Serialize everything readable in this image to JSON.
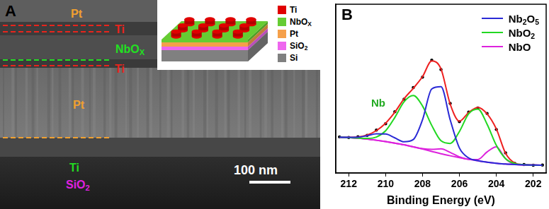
{
  "panel_a": {
    "label": "A",
    "layer_labels": [
      {
        "text": "Pt",
        "color": "#f0a030"
      },
      {
        "text": "Ti",
        "color": "#e8241c"
      },
      {
        "text": "NbOX",
        "color": "#22e022"
      },
      {
        "text": "Ti",
        "color": "#e8241c"
      },
      {
        "text": "Pt",
        "color": "#f0a030"
      },
      {
        "text": "Ti",
        "color": "#22dd22"
      },
      {
        "text": "SiO2",
        "color": "#e020e0"
      }
    ],
    "scale_bar": "100 nm",
    "inset_legend": [
      {
        "label": "Ti",
        "color": "#e00000"
      },
      {
        "label": "NbOX",
        "color": "#66cc33"
      },
      {
        "label": "Pt",
        "color": "#f5a04a"
      },
      {
        "label": "SiO2",
        "color": "#ee66ee"
      },
      {
        "label": "Si",
        "color": "#808080"
      }
    ]
  },
  "chart_data": {
    "type": "line",
    "panel_label": "B",
    "x_label": "Binding Energy (eV)",
    "x": [
      212.5,
      212,
      211.5,
      211,
      210.5,
      210,
      209.5,
      209,
      208.5,
      208,
      207.5,
      207,
      206.5,
      206,
      205.5,
      205,
      204.5,
      204,
      203.5,
      203,
      202.5,
      202,
      201.5
    ],
    "series": [
      {
        "name": "Nb2O5",
        "color": "#2a2ad6",
        "values": [
          21.2,
          21.1,
          21.2,
          22.1,
          23.2,
          23.1,
          20.8,
          18.5,
          19.8,
          31.5,
          49.8,
          51.1,
          31.5,
          14.8,
          8.9,
          7.3,
          6.4,
          5.8,
          5.3,
          5.0,
          4.8,
          4.7,
          4.6
        ]
      },
      {
        "name": "NbO2",
        "color": "#22d822",
        "values": [
          21.2,
          21.0,
          20.7,
          20.5,
          21.3,
          25.0,
          32.9,
          42.2,
          45.9,
          39.7,
          28.2,
          19.1,
          17.5,
          24.6,
          35.1,
          37.9,
          28.9,
          16.4,
          8.5,
          5.6,
          4.9,
          4.7,
          4.6
        ]
      },
      {
        "name": "NbO",
        "color": "#dd22dd",
        "values": [
          21.2,
          21.0,
          20.6,
          20.1,
          19.4,
          18.6,
          17.7,
          16.7,
          15.5,
          14.4,
          14.0,
          14.3,
          12.2,
          9.5,
          8.1,
          8.0,
          12.5,
          15.5,
          8.5,
          5.2,
          4.8,
          4.7,
          4.6
        ]
      },
      {
        "color": "#dd22dd",
        "values": [
          21.2,
          21.0,
          20.6,
          20.1,
          19.4,
          18.6,
          17.7,
          16.7,
          15.5,
          14.2,
          12.8,
          11.4,
          10.2,
          9.1,
          8.1,
          7.2,
          6.4,
          5.8,
          5.3,
          5.0,
          4.8,
          4.7,
          4.6
        ]
      },
      {
        "color": "#ee2020",
        "values": [
          21.2,
          21.1,
          21.3,
          22.5,
          25.1,
          29.5,
          36.0,
          44.0,
          50.2,
          57.1,
          66.4,
          61.7,
          40.8,
          30.7,
          35.8,
          38.8,
          35.0,
          26.1,
          11.7,
          5.9,
          4.9,
          4.7,
          4.6
        ]
      },
      {
        "color": "#000000",
        "marker": "circle",
        "line_style": "none",
        "values": [
          21.4,
          21.0,
          21.5,
          22.3,
          25.4,
          29.2,
          36.3,
          43.7,
          50.6,
          56.8,
          66.9,
          61.3,
          41.2,
          30.4,
          36.1,
          38.5,
          35.3,
          25.8,
          11.9,
          5.7,
          5.0,
          4.6,
          4.7
        ]
      }
    ],
    "xlim": [
      212.7,
      201.3
    ],
    "xticks": [
      212,
      210,
      208,
      206,
      204,
      202
    ],
    "ylim": [
      0,
      100
    ],
    "yticks": [],
    "tick_labels": "x",
    "grid": false,
    "legend": "top-right",
    "annotations": [
      {
        "text": "Nb",
        "x": 210.4,
        "y": 41.8,
        "color": "#22aa22"
      }
    ]
  }
}
